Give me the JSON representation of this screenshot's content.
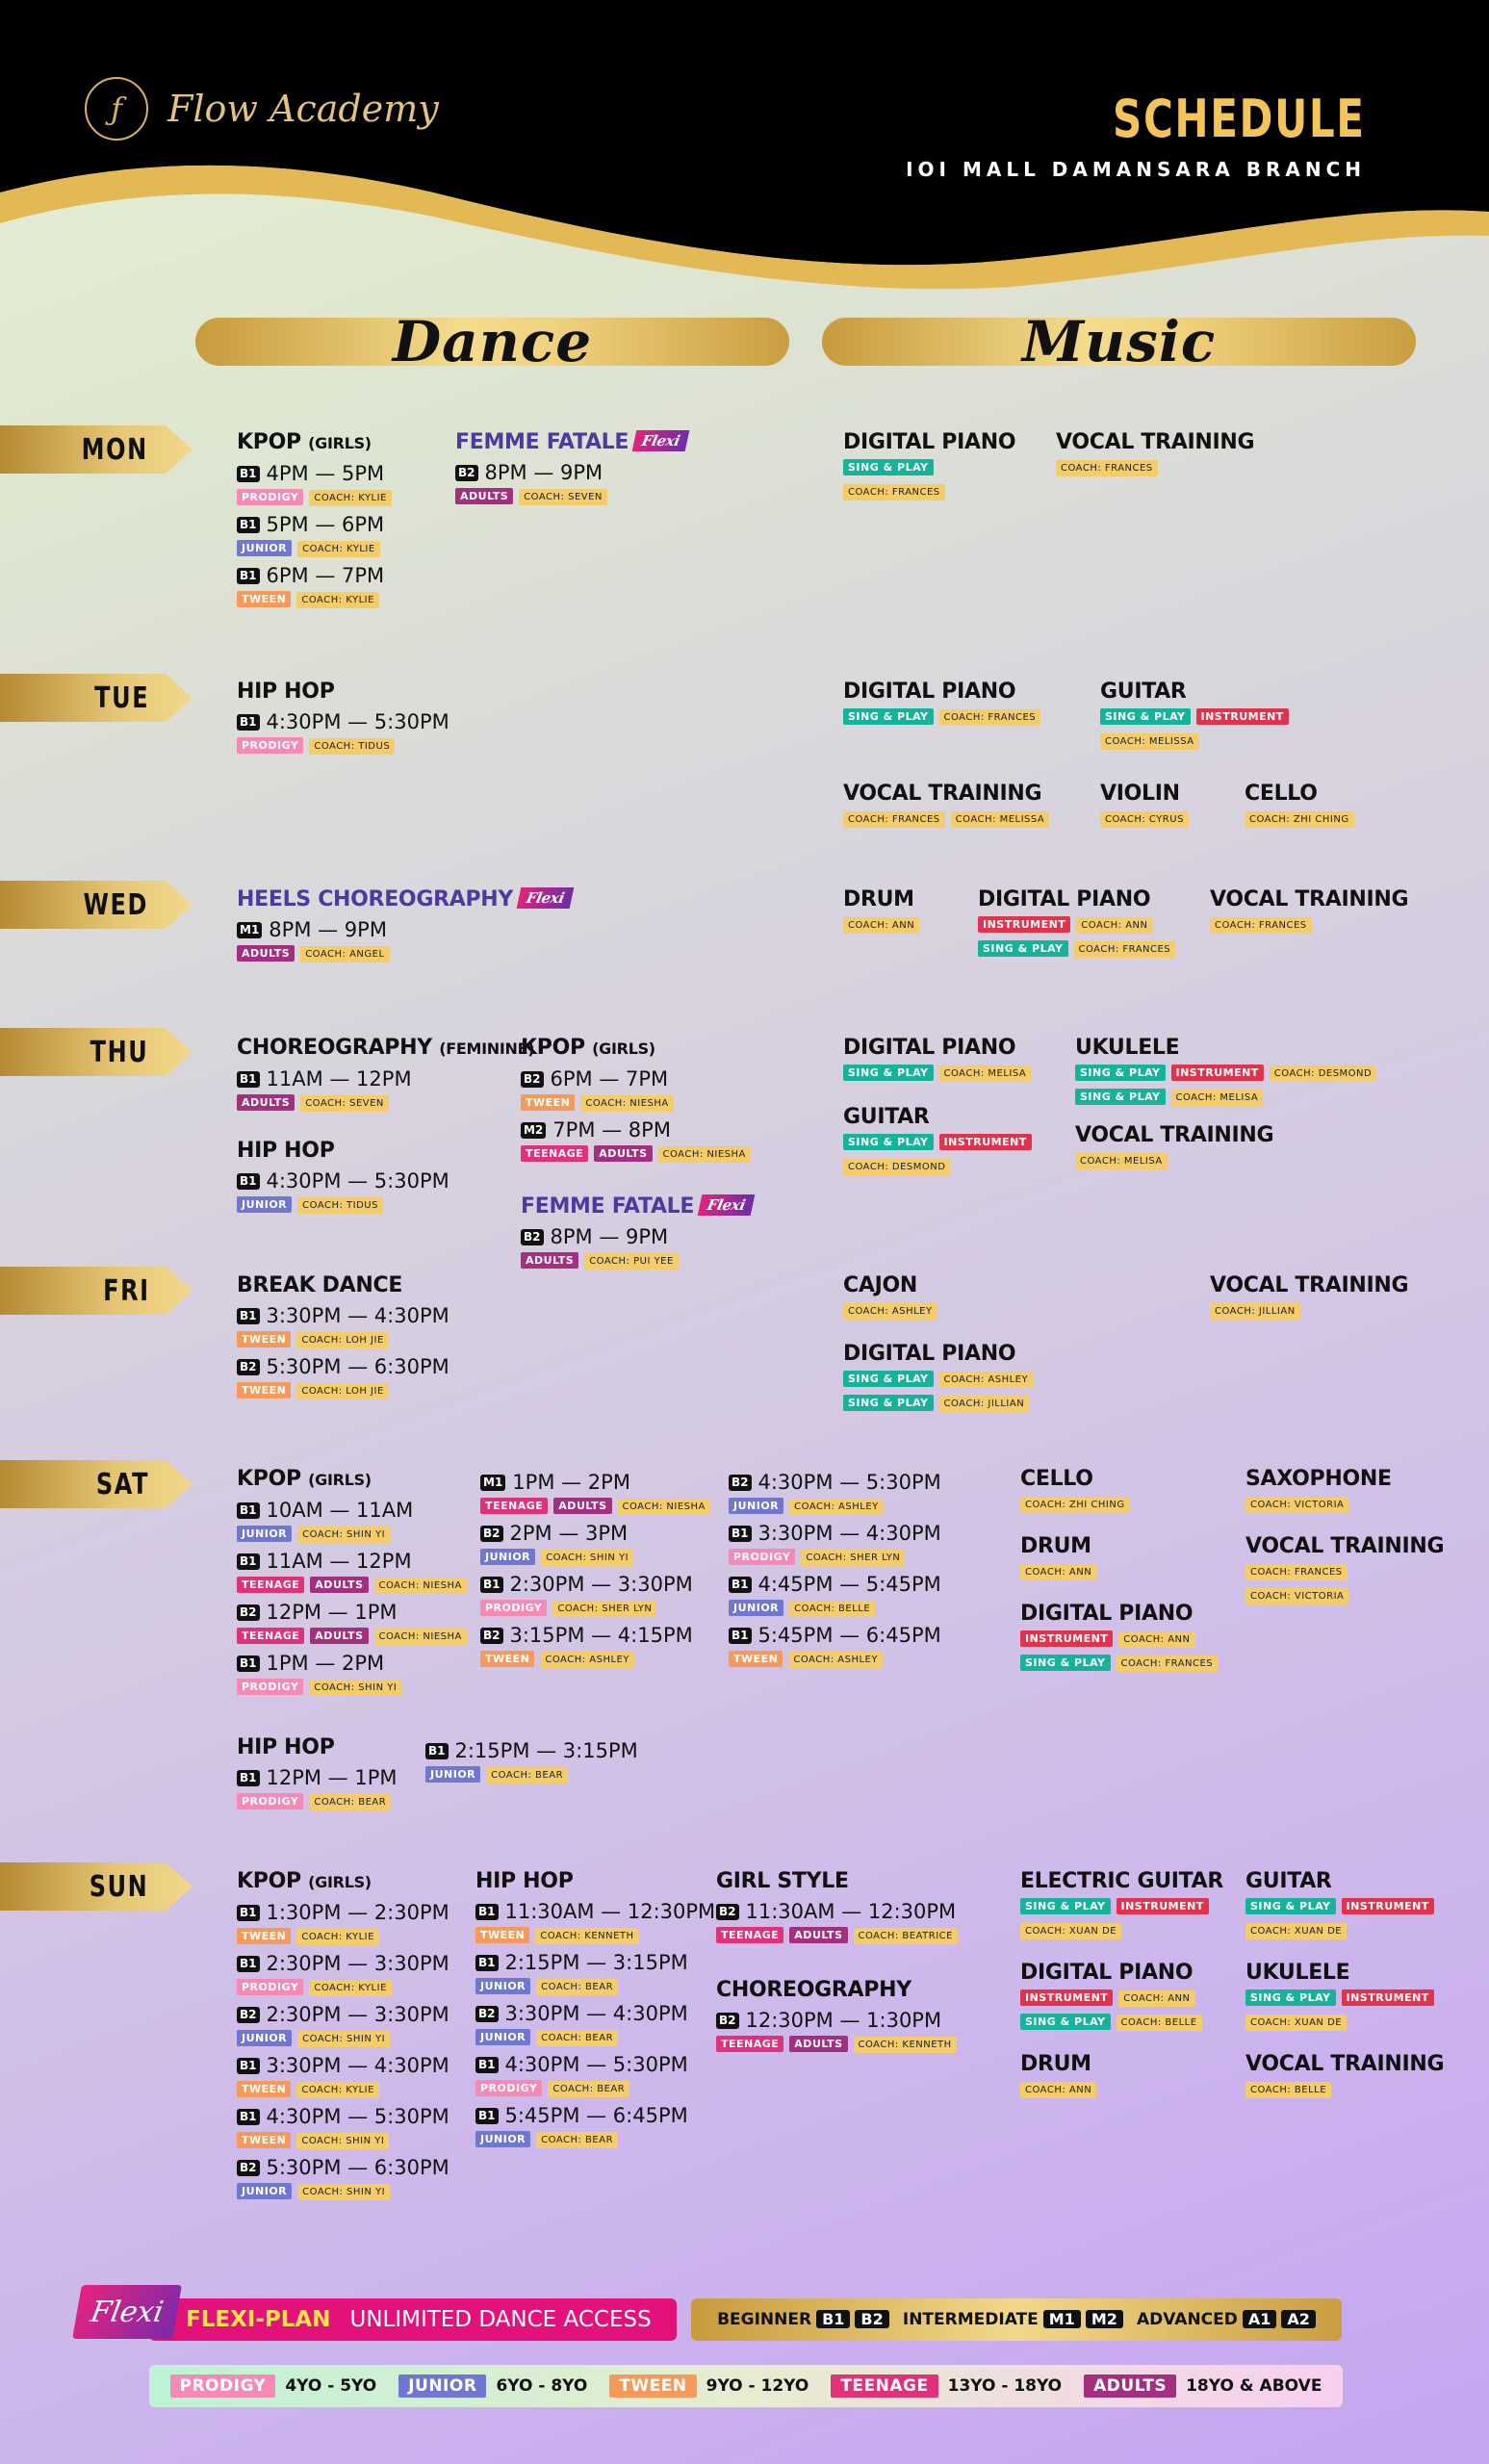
{
  "header": {
    "brand": "Flow Academy",
    "title": "SCHEDULE",
    "branch": "IOI MALL DAMANSARA BRANCH"
  },
  "categories": {
    "dance": "Dance",
    "music": "Music"
  },
  "days": {
    "mon": "MON",
    "tue": "TUE",
    "wed": "WED",
    "thu": "THU",
    "fri": "FRI",
    "sat": "SAT",
    "sun": "SUN"
  },
  "flexi_tag": "Flexi",
  "classes": {
    "mon_kpop": {
      "name": "KPOP",
      "sub": "(GIRLS)"
    },
    "mon_ff": {
      "name": "FEMME FATALE"
    },
    "mon_piano": {
      "name": "DIGITAL PIANO"
    },
    "mon_vocal": {
      "name": "VOCAL TRAINING"
    },
    "tue_hiphop": {
      "name": "HIP HOP"
    },
    "tue_piano": {
      "name": "DIGITAL PIANO"
    },
    "tue_guitar": {
      "name": "GUITAR"
    },
    "tue_vocal": {
      "name": "VOCAL TRAINING"
    },
    "tue_violin": {
      "name": "VIOLIN"
    },
    "tue_cello": {
      "name": "CELLO"
    },
    "wed_heels": {
      "name": "HEELS CHOREOGRAPHY"
    },
    "wed_drum": {
      "name": "DRUM"
    },
    "wed_piano": {
      "name": "DIGITAL PIANO"
    },
    "wed_vocal": {
      "name": "VOCAL TRAINING"
    },
    "thu_choreo": {
      "name": "CHOREOGRAPHY",
      "sub": "(FEMININE)"
    },
    "thu_hiphop": {
      "name": "HIP HOP"
    },
    "thu_kpop": {
      "name": "KPOP",
      "sub": "(GIRLS)"
    },
    "thu_ff": {
      "name": "FEMME FATALE"
    },
    "thu_piano": {
      "name": "DIGITAL PIANO"
    },
    "thu_guitar": {
      "name": "GUITAR"
    },
    "thu_ukulele": {
      "name": "UKULELE"
    },
    "thu_vocal": {
      "name": "VOCAL TRAINING"
    },
    "fri_break": {
      "name": "BREAK DANCE"
    },
    "fri_cajon": {
      "name": "CAJON"
    },
    "fri_piano": {
      "name": "DIGITAL PIANO"
    },
    "fri_vocal": {
      "name": "VOCAL TRAINING"
    },
    "sat_kpop": {
      "name": "KPOP",
      "sub": "(GIRLS)"
    },
    "sat_hiphop": {
      "name": "HIP HOP"
    },
    "sat_cello": {
      "name": "CELLO"
    },
    "sat_drum": {
      "name": "DRUM"
    },
    "sat_piano": {
      "name": "DIGITAL PIANO"
    },
    "sat_sax": {
      "name": "SAXOPHONE"
    },
    "sat_vocal": {
      "name": "VOCAL TRAINING"
    },
    "sun_kpop": {
      "name": "KPOP",
      "sub": "(GIRLS)"
    },
    "sun_hiphop": {
      "name": "HIP HOP"
    },
    "sun_girl": {
      "name": "GIRL STYLE"
    },
    "sun_choreo": {
      "name": "CHOREOGRAPHY"
    },
    "sun_eguitar": {
      "name": "ELECTRIC GUITAR"
    },
    "sun_piano": {
      "name": "DIGITAL PIANO"
    },
    "sun_drum": {
      "name": "DRUM"
    },
    "sun_guitar": {
      "name": "GUITAR"
    },
    "sun_ukulele": {
      "name": "UKULELE"
    },
    "sun_vocal": {
      "name": "VOCAL TRAINING"
    }
  },
  "sessions": {
    "mon_kpop": [
      {
        "lv": "B1",
        "time": "4PM — 5PM",
        "tags": [
          "PRODIGY"
        ],
        "coach": "COACH: KYLIE"
      },
      {
        "lv": "B1",
        "time": "5PM — 6PM",
        "tags": [
          "JUNIOR"
        ],
        "coach": "COACH: KYLIE"
      },
      {
        "lv": "B1",
        "time": "6PM — 7PM",
        "tags": [
          "TWEEN"
        ],
        "coach": "COACH: KYLIE"
      }
    ],
    "mon_ff": [
      {
        "lv": "B2",
        "time": "8PM — 9PM",
        "tags": [
          "ADULTS"
        ],
        "coach": "COACH: SEVEN"
      }
    ],
    "tue_hiphop": [
      {
        "lv": "B1",
        "time": "4:30PM — 5:30PM",
        "tags": [
          "PRODIGY"
        ],
        "coach": "COACH: TIDUS"
      }
    ],
    "wed_heels": [
      {
        "lv": "M1",
        "time": "8PM — 9PM",
        "tags": [
          "ADULTS"
        ],
        "coach": "COACH: ANGEL"
      }
    ],
    "thu_choreo": [
      {
        "lv": "B1",
        "time": "11AM — 12PM",
        "tags": [
          "ADULTS"
        ],
        "coach": "COACH: SEVEN"
      }
    ],
    "thu_hiphop": [
      {
        "lv": "B1",
        "time": "4:30PM — 5:30PM",
        "tags": [
          "JUNIOR"
        ],
        "coach": "COACH: TIDUS"
      }
    ],
    "thu_kpop": [
      {
        "lv": "B2",
        "time": "6PM — 7PM",
        "tags": [
          "TWEEN"
        ],
        "coach": "COACH: NIESHA"
      },
      {
        "lv": "M2",
        "time": "7PM — 8PM",
        "tags": [
          "TEENAGE",
          "ADULTS"
        ],
        "coach": "COACH: NIESHA"
      }
    ],
    "thu_ff": [
      {
        "lv": "B2",
        "time": "8PM — 9PM",
        "tags": [
          "ADULTS"
        ],
        "coach": "COACH: PUI YEE"
      }
    ],
    "fri_break": [
      {
        "lv": "B1",
        "time": "3:30PM — 4:30PM",
        "tags": [
          "TWEEN"
        ],
        "coach": "COACH: LOH JIE"
      },
      {
        "lv": "B2",
        "time": "5:30PM — 6:30PM",
        "tags": [
          "TWEEN"
        ],
        "coach": "COACH: LOH JIE"
      }
    ],
    "sat_kpop_a": [
      {
        "lv": "B1",
        "time": "10AM — 11AM",
        "tags": [
          "JUNIOR"
        ],
        "coach": "COACH: SHIN YI"
      },
      {
        "lv": "B1",
        "time": "11AM — 12PM",
        "tags": [
          "TEENAGE",
          "ADULTS"
        ],
        "coach": "COACH: NIESHA"
      },
      {
        "lv": "B2",
        "time": "12PM — 1PM",
        "tags": [
          "TEENAGE",
          "ADULTS"
        ],
        "coach": "COACH: NIESHA"
      },
      {
        "lv": "B1",
        "time": "1PM — 2PM",
        "tags": [
          "PRODIGY"
        ],
        "coach": "COACH: SHIN YI"
      }
    ],
    "sat_kpop_b": [
      {
        "lv": "M1",
        "time": "1PM — 2PM",
        "tags": [
          "TEENAGE",
          "ADULTS"
        ],
        "coach": "COACH: NIESHA"
      },
      {
        "lv": "B2",
        "time": "2PM — 3PM",
        "tags": [
          "JUNIOR"
        ],
        "coach": "COACH: SHIN YI"
      },
      {
        "lv": "B1",
        "time": "2:30PM — 3:30PM",
        "tags": [
          "PRODIGY"
        ],
        "coach": "COACH: SHER LYN"
      },
      {
        "lv": "B2",
        "time": "3:15PM — 4:15PM",
        "tags": [
          "TWEEN"
        ],
        "coach": "COACH: ASHLEY"
      }
    ],
    "sat_kpop_c": [
      {
        "lv": "B2",
        "time": "4:30PM — 5:30PM",
        "tags": [
          "JUNIOR"
        ],
        "coach": "COACH: ASHLEY"
      },
      {
        "lv": "B1",
        "time": "3:30PM — 4:30PM",
        "tags": [
          "PRODIGY"
        ],
        "coach": "COACH: SHER LYN"
      },
      {
        "lv": "B1",
        "time": "4:45PM — 5:45PM",
        "tags": [
          "JUNIOR"
        ],
        "coach": "COACH: BELLE"
      },
      {
        "lv": "B1",
        "time": "5:45PM — 6:45PM",
        "tags": [
          "TWEEN"
        ],
        "coach": "COACH: ASHLEY"
      }
    ],
    "sat_hiphop_a": [
      {
        "lv": "B1",
        "time": "12PM — 1PM",
        "tags": [
          "PRODIGY"
        ],
        "coach": "COACH: BEAR"
      }
    ],
    "sat_hiphop_b": [
      {
        "lv": "B1",
        "time": "2:15PM — 3:15PM",
        "tags": [
          "JUNIOR"
        ],
        "coach": "COACH: BEAR"
      }
    ],
    "sun_kpop": [
      {
        "lv": "B1",
        "time": "1:30PM — 2:30PM",
        "tags": [
          "TWEEN"
        ],
        "coach": "COACH: KYLIE"
      },
      {
        "lv": "B1",
        "time": "2:30PM — 3:30PM",
        "tags": [
          "PRODIGY"
        ],
        "coach": "COACH: KYLIE"
      },
      {
        "lv": "B2",
        "time": "2:30PM — 3:30PM",
        "tags": [
          "JUNIOR"
        ],
        "coach": "COACH: SHIN YI"
      },
      {
        "lv": "B1",
        "time": "3:30PM — 4:30PM",
        "tags": [
          "TWEEN"
        ],
        "coach": "COACH: KYLIE"
      },
      {
        "lv": "B1",
        "time": "4:30PM — 5:30PM",
        "tags": [
          "TWEEN"
        ],
        "coach": "COACH: SHIN YI"
      },
      {
        "lv": "B2",
        "time": "5:30PM — 6:30PM",
        "tags": [
          "JUNIOR"
        ],
        "coach": "COACH: SHIN YI"
      }
    ],
    "sun_hiphop": [
      {
        "lv": "B1",
        "time": "11:30AM — 12:30PM",
        "tags": [
          "TWEEN"
        ],
        "coach": "COACH: KENNETH"
      },
      {
        "lv": "B1",
        "time": "2:15PM — 3:15PM",
        "tags": [
          "JUNIOR"
        ],
        "coach": "COACH: BEAR"
      },
      {
        "lv": "B2",
        "time": "3:30PM — 4:30PM",
        "tags": [
          "JUNIOR"
        ],
        "coach": "COACH: BEAR"
      },
      {
        "lv": "B1",
        "time": "4:30PM — 5:30PM",
        "tags": [
          "PRODIGY"
        ],
        "coach": "COACH: BEAR"
      },
      {
        "lv": "B1",
        "time": "5:45PM — 6:45PM",
        "tags": [
          "JUNIOR"
        ],
        "coach": "COACH: BEAR"
      }
    ],
    "sun_girl": [
      {
        "lv": "B2",
        "time": "11:30AM — 12:30PM",
        "tags": [
          "TEENAGE",
          "ADULTS"
        ],
        "coach": "COACH: BEATRICE"
      }
    ],
    "sun_choreo": [
      {
        "lv": "B2",
        "time": "12:30PM — 1:30PM",
        "tags": [
          "TEENAGE",
          "ADULTS"
        ],
        "coach": "COACH: KENNETH"
      }
    ]
  },
  "music_rows": {
    "mon_piano": [
      {
        "tags": [
          "SING & PLAY"
        ]
      },
      {
        "coach": "COACH: FRANCES"
      }
    ],
    "mon_vocal": [
      {
        "coach": "COACH: FRANCES"
      }
    ],
    "tue_piano": [
      {
        "tags": [
          "SING & PLAY"
        ],
        "coach": "COACH: FRANCES"
      }
    ],
    "tue_guitar": [
      {
        "tags": [
          "SING & PLAY",
          "INSTRUMENT"
        ]
      },
      {
        "coach": "COACH: MELISSA"
      }
    ],
    "tue_vocal": [
      {
        "coach": "COACH: FRANCES",
        "coach2": "COACH: MELISSA"
      }
    ],
    "tue_violin": [
      {
        "coach": "COACH: CYRUS"
      }
    ],
    "tue_cello": [
      {
        "coach": "COACH: ZHI CHING"
      }
    ],
    "wed_drum": [
      {
        "coach": "COACH: ANN"
      }
    ],
    "wed_piano": [
      {
        "tags": [
          "INSTRUMENT"
        ],
        "coach": "COACH: ANN"
      },
      {
        "tags": [
          "SING & PLAY"
        ],
        "coach": "COACH: FRANCES"
      }
    ],
    "wed_vocal": [
      {
        "coach": "COACH: FRANCES"
      }
    ],
    "thu_piano": [
      {
        "tags": [
          "SING & PLAY"
        ],
        "coach": "COACH: MELISA"
      }
    ],
    "thu_guitar": [
      {
        "tags": [
          "SING & PLAY",
          "INSTRUMENT"
        ]
      },
      {
        "coach": "COACH: DESMOND"
      }
    ],
    "thu_ukulele": [
      {
        "tags": [
          "SING & PLAY",
          "INSTRUMENT"
        ],
        "coach": "COACH: DESMOND"
      },
      {
        "tags": [
          "SING & PLAY"
        ],
        "coach": "COACH: MELISA"
      }
    ],
    "thu_vocal": [
      {
        "coach": "COACH: MELISA"
      }
    ],
    "fri_cajon": [
      {
        "coach": "COACH: ASHLEY"
      }
    ],
    "fri_piano": [
      {
        "tags": [
          "SING & PLAY"
        ],
        "coach": "COACH: ASHLEY"
      },
      {
        "tags": [
          "SING & PLAY"
        ],
        "coach": "COACH: JILLIAN"
      }
    ],
    "fri_vocal": [
      {
        "coach": "COACH: JILLIAN"
      }
    ],
    "sat_cello": [
      {
        "coach": "COACH: ZHI CHING"
      }
    ],
    "sat_drum": [
      {
        "coach": "COACH: ANN"
      }
    ],
    "sat_piano": [
      {
        "tags": [
          "INSTRUMENT"
        ],
        "coach": "COACH: ANN"
      },
      {
        "tags": [
          "SING & PLAY"
        ],
        "coach": "COACH: FRANCES"
      }
    ],
    "sat_sax": [
      {
        "coach": "COACH: VICTORIA"
      }
    ],
    "sat_vocal": [
      {
        "coach": "COACH: FRANCES"
      },
      {
        "coach": "COACH: VICTORIA"
      }
    ],
    "sun_eguitar": [
      {
        "tags": [
          "SING & PLAY",
          "INSTRUMENT"
        ]
      },
      {
        "coach": "COACH: XUAN DE"
      }
    ],
    "sun_piano": [
      {
        "tags": [
          "INSTRUMENT"
        ],
        "coach": "COACH: ANN"
      },
      {
        "tags": [
          "SING & PLAY"
        ],
        "coach": "COACH: BELLE"
      }
    ],
    "sun_drum": [
      {
        "coach": "COACH: ANN"
      }
    ],
    "sun_guitar": [
      {
        "tags": [
          "SING & PLAY",
          "INSTRUMENT"
        ]
      },
      {
        "coach": "COACH: XUAN DE"
      }
    ],
    "sun_ukulele": [
      {
        "tags": [
          "SING & PLAY",
          "INSTRUMENT"
        ]
      },
      {
        "coach": "COACH: XUAN DE"
      }
    ],
    "sun_vocal": [
      {
        "coach": "COACH: BELLE"
      }
    ]
  },
  "footer": {
    "flexi_logo": "Flexi",
    "flexi_plan": "FLEXI-PLAN",
    "flexi_desc": "UNLIMITED DANCE ACCESS",
    "levels": [
      {
        "label": "BEGINNER",
        "codes": [
          "B1",
          "B2"
        ]
      },
      {
        "label": "INTERMEDIATE",
        "codes": [
          "M1",
          "M2"
        ]
      },
      {
        "label": "ADVANCED",
        "codes": [
          "A1",
          "A2"
        ]
      }
    ],
    "ages": [
      {
        "tag": "PRODIGY",
        "range": "4YO - 5YO"
      },
      {
        "tag": "JUNIOR",
        "range": "6YO - 8YO"
      },
      {
        "tag": "TWEEN",
        "range": "9YO - 12YO"
      },
      {
        "tag": "TEENAGE",
        "range": "13YO - 18YO"
      },
      {
        "tag": "ADULTS",
        "range": "18YO & ABOVE"
      }
    ]
  },
  "colors": {
    "gold": "#e9c870",
    "black": "#000000",
    "prodigy": "#f58ab5",
    "junior": "#6f77d1",
    "tween": "#f59a5a",
    "teenage": "#e0327a",
    "adults": "#a2307f",
    "sing_play": "#16b39a",
    "instrument": "#e0344e",
    "coach": "#f5cc6a"
  }
}
